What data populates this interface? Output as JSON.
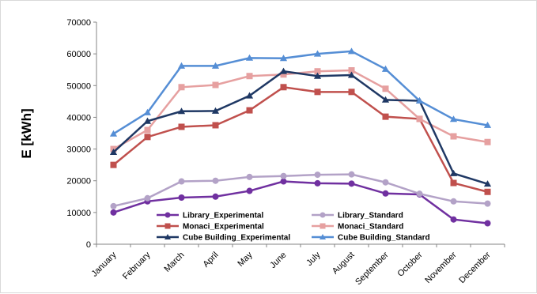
{
  "chart_data": {
    "type": "line",
    "ylabel": "E [kWh]",
    "xlabel": "",
    "title": "",
    "ylim": [
      0,
      70000
    ],
    "yticks": [
      "0",
      "10000",
      "20000",
      "30000",
      "40000",
      "50000",
      "60000",
      "70000"
    ],
    "ytick_values": [
      0,
      10000,
      20000,
      30000,
      40000,
      50000,
      60000,
      70000
    ],
    "grid": false,
    "legend_position": "bottom-inside",
    "categories": [
      "January",
      "February",
      "March",
      "April",
      "May",
      "June",
      "July",
      "August",
      "September",
      "October",
      "November",
      "December"
    ],
    "series": [
      {
        "name": "Library_Experimental",
        "color": "#7030a0",
        "marker": "circle",
        "values": [
          10000,
          13500,
          14700,
          15000,
          16800,
          19800,
          19200,
          19100,
          16000,
          15700,
          7800,
          6600
        ]
      },
      {
        "name": "Library_Standard",
        "color": "#b3a2c7",
        "marker": "circle",
        "values": [
          12000,
          14500,
          19800,
          20000,
          21200,
          21500,
          21900,
          22000,
          19500,
          15900,
          13500,
          12800
        ]
      },
      {
        "name": "Monaci_Experimental",
        "color": "#c0504d",
        "marker": "square",
        "values": [
          25000,
          33800,
          37000,
          37500,
          42200,
          49500,
          48000,
          48000,
          40200,
          39500,
          19300,
          16500
        ]
      },
      {
        "name": "Monaci_Standard",
        "color": "#e6a0a0",
        "marker": "square",
        "values": [
          30000,
          36000,
          49500,
          50200,
          53000,
          53500,
          54500,
          54800,
          49000,
          39500,
          34000,
          32200
        ]
      },
      {
        "name": "Cube Building_Experimental",
        "color": "#1f3864",
        "marker": "triangle",
        "values": [
          29000,
          38800,
          41900,
          42000,
          46800,
          54500,
          53000,
          53300,
          45500,
          45200,
          22300,
          19000
        ]
      },
      {
        "name": "Cube Building_Standard",
        "color": "#558ed5",
        "marker": "triangle",
        "values": [
          34800,
          41500,
          56200,
          56200,
          58700,
          58600,
          60000,
          60800,
          55200,
          45200,
          39400,
          37500
        ]
      }
    ]
  }
}
